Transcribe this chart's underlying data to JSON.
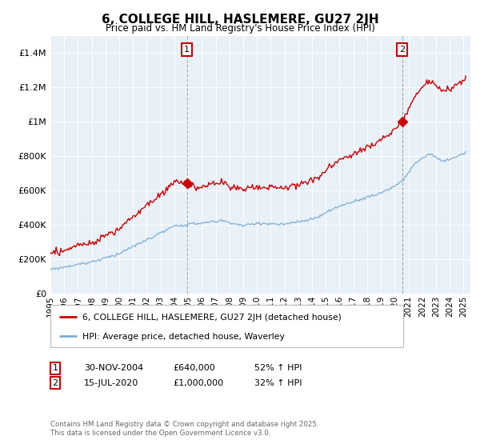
{
  "title": "6, COLLEGE HILL, HASLEMERE, GU27 2JH",
  "subtitle": "Price paid vs. HM Land Registry's House Price Index (HPI)",
  "red_line_color": "#cc0000",
  "blue_line_color": "#7dadd4",
  "plot_bg_color": "#e8f0f8",
  "ylim": [
    0,
    1500000
  ],
  "xlim_start": 1995.0,
  "xlim_end": 2025.5,
  "sale1_date": 2004.917,
  "sale1_price": 640000,
  "sale2_date": 2020.542,
  "sale2_price": 1000000,
  "legend_label_red": "6, COLLEGE HILL, HASLEMERE, GU27 2JH (detached house)",
  "legend_label_blue": "HPI: Average price, detached house, Waverley",
  "annotation1_date": "30-NOV-2004",
  "annotation1_price": "£640,000",
  "annotation1_hpi": "52% ↑ HPI",
  "annotation2_date": "15-JUL-2020",
  "annotation2_price": "£1,000,000",
  "annotation2_hpi": "32% ↑ HPI",
  "footer": "Contains HM Land Registry data © Crown copyright and database right 2025.\nThis data is licensed under the Open Government Licence v3.0."
}
